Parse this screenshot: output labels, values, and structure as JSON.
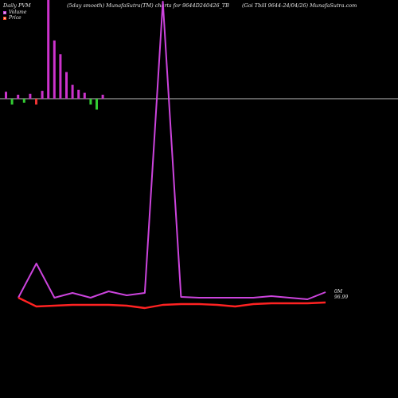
{
  "header": {
    "left": "Daily PVM",
    "middle": "(5day smooth) MunafaSutra(TM) charts for 9644D240426_TB",
    "right": "(Goi  Tbill 9644-24/04/26) MunafaSutra.com"
  },
  "legend": {
    "volume_label": "Volume",
    "price_label": "Price"
  },
  "colors": {
    "volume_series": "#cc44dd",
    "price_series": "#ff2222",
    "volume_up": "#cc33cc",
    "volume_down": "#33cc33",
    "volume_red": "#ee3333",
    "baseline": "#bbbbbb",
    "background": "#000000"
  },
  "chart_data": [
    {
      "type": "bar",
      "name": "volume-bars",
      "values": [
        7,
        -6,
        4,
        -4,
        5,
        -6,
        8,
        100,
        59,
        45,
        27,
        14,
        9,
        6,
        -6,
        -11,
        4
      ],
      "colors": [
        "volume_up",
        "volume_down",
        "volume_up",
        "volume_down",
        "volume_up",
        "volume_red",
        "volume_up",
        "volume_up",
        "volume_up",
        "volume_up",
        "volume_up",
        "volume_up",
        "volume_up",
        "volume_up",
        "volume_down",
        "volume_down",
        "volume_up"
      ],
      "ylim": [
        -30,
        100
      ]
    },
    {
      "type": "line",
      "x": [
        0,
        1,
        2,
        3,
        4,
        5,
        6,
        7,
        8,
        9,
        10,
        11,
        12,
        13,
        14,
        15,
        16,
        17
      ],
      "series": [
        {
          "values": [
            374,
            331,
            374,
            368,
            374,
            366,
            371,
            368,
            2,
            373,
            374,
            374,
            374,
            374,
            372,
            374,
            376,
            367
          ]
        },
        {
          "values": [
            374,
            385,
            384,
            383,
            383,
            383,
            384,
            387,
            383,
            382,
            382,
            383,
            385,
            382,
            381,
            381,
            381,
            380
          ]
        }
      ],
      "annotations": [
        "0M",
        "96.99"
      ]
    }
  ]
}
